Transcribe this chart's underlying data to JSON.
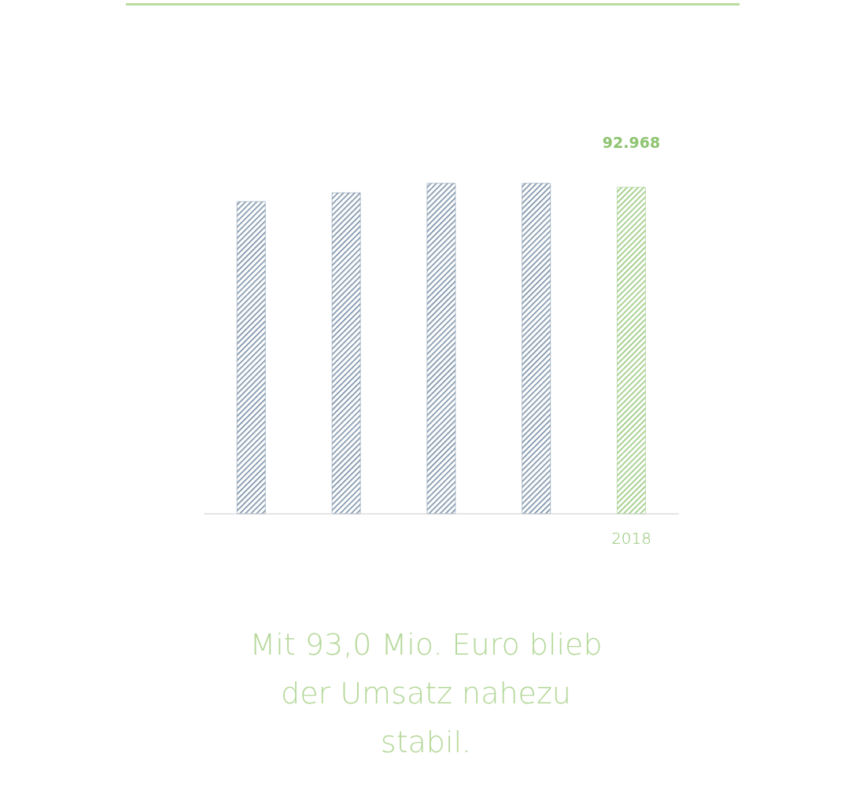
{
  "chart_data": {
    "type": "bar",
    "categories": [
      null,
      null,
      null,
      null,
      "2018"
    ],
    "values": [
      88.9,
      91.4,
      94.1,
      94.1,
      92.968
    ],
    "colors": [
      "#6d86a0",
      "#6d86a0",
      "#6d86a0",
      "#6d86a0",
      "#8fc472"
    ],
    "value_labels": [
      null,
      null,
      null,
      null,
      "92.968"
    ],
    "annotations": [
      "Mit 93,0 Mio. Euro blieb der Umsatz nahezu stabil."
    ]
  }
}
